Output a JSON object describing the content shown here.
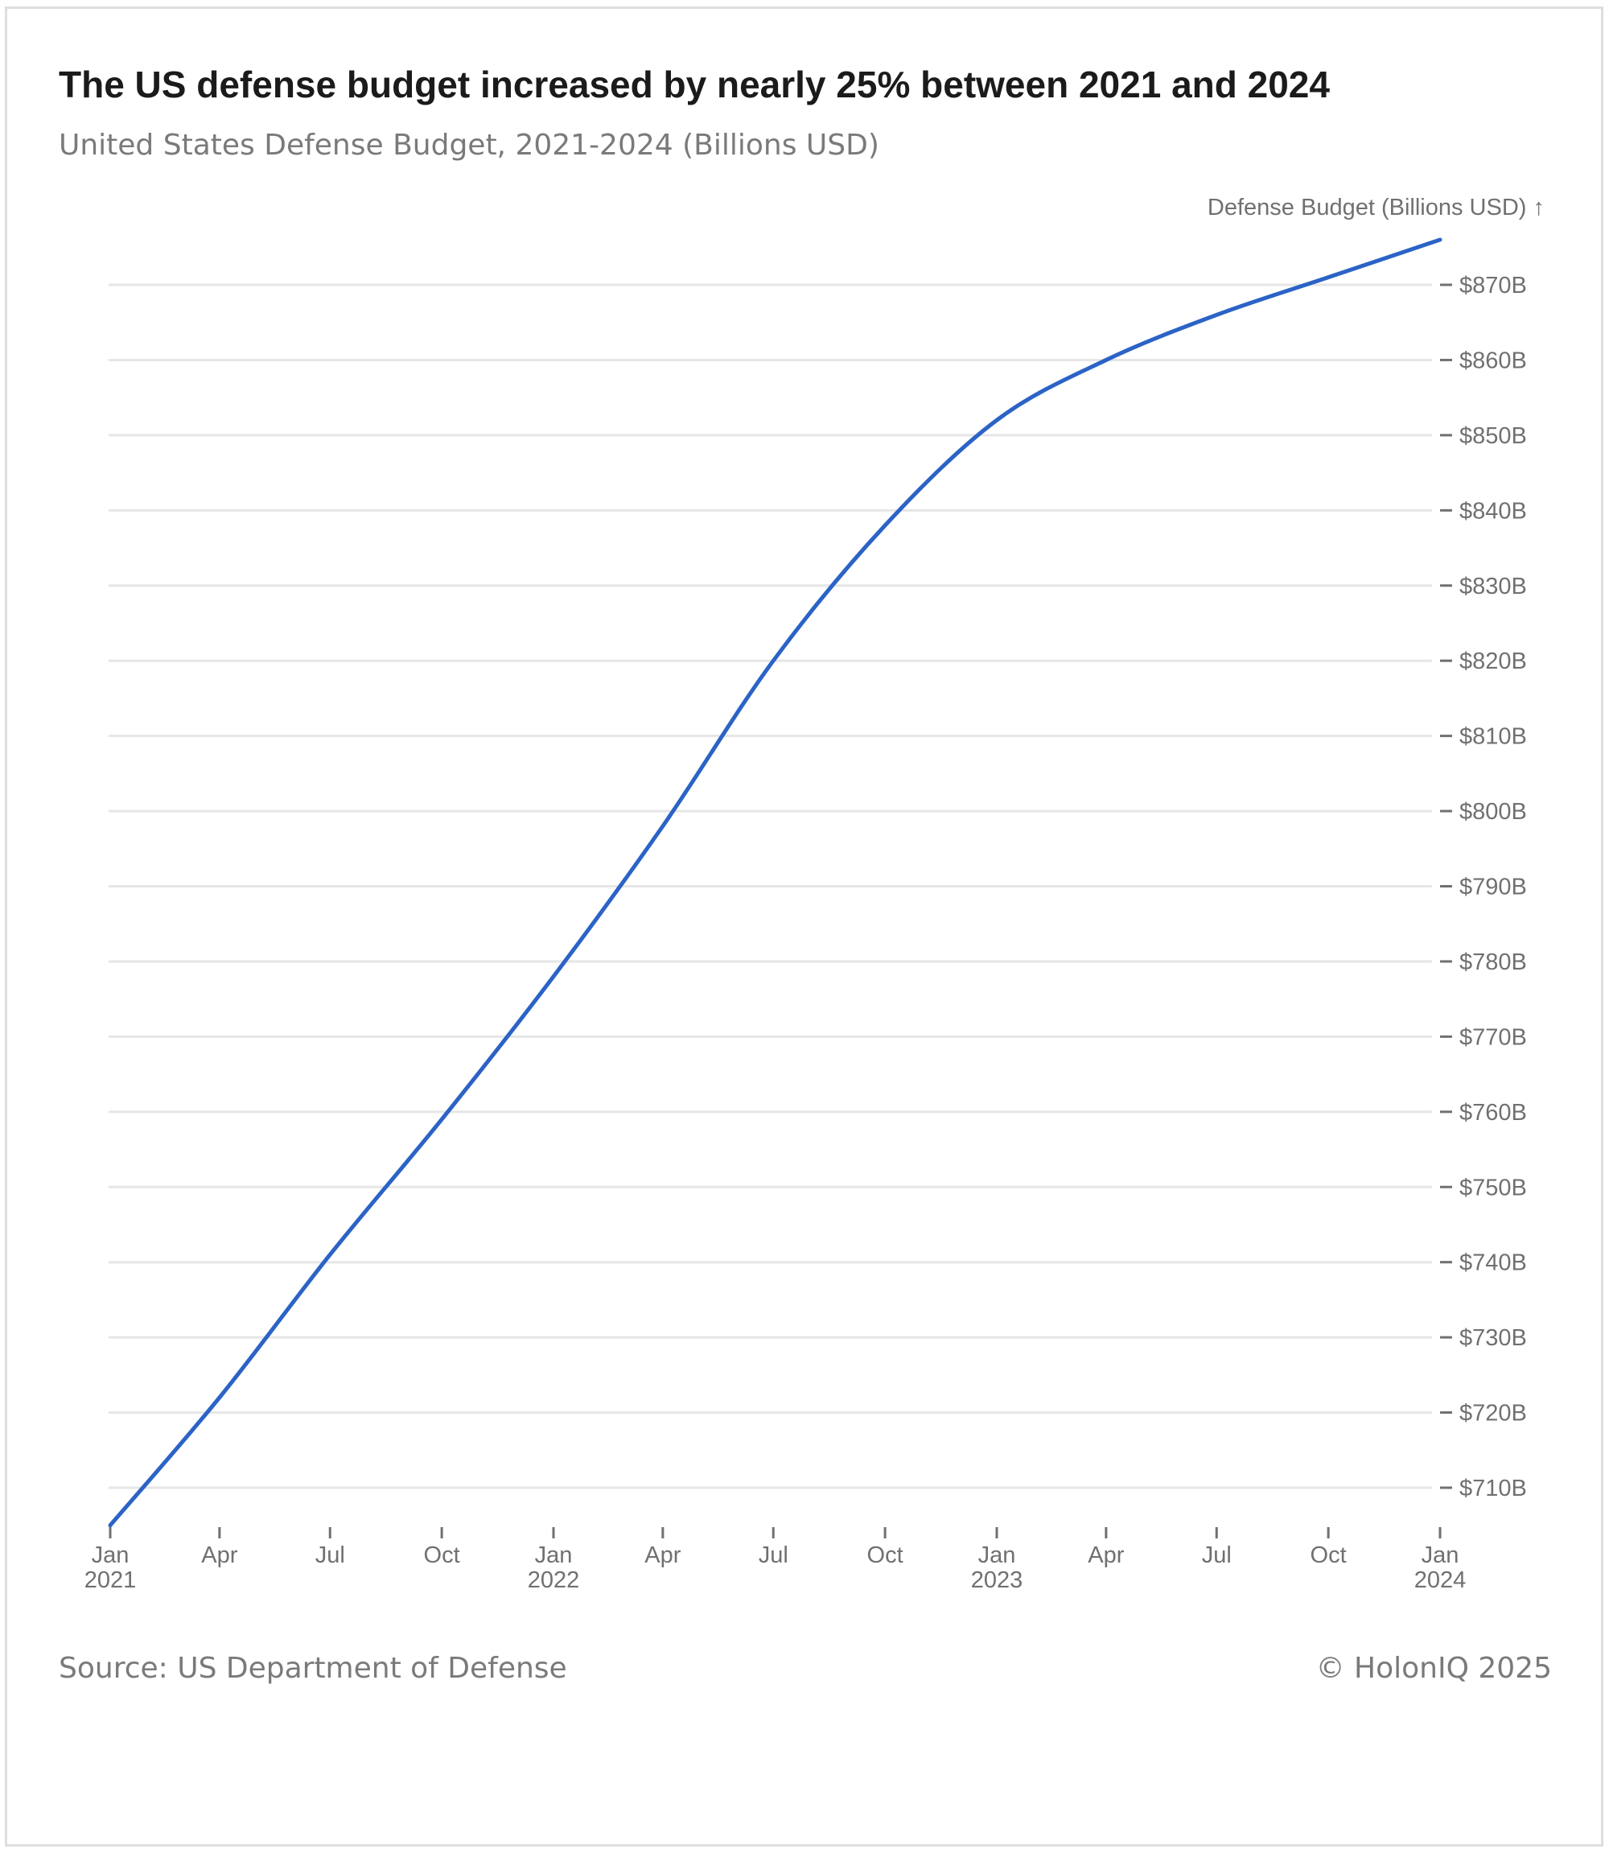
{
  "header": {
    "title": "The US defense budget increased by nearly 25% between 2021 and 2024",
    "subtitle": "United States Defense Budget, 2021-2024 (Billions USD)"
  },
  "footer": {
    "source": "Source: US Department of Defense",
    "copyright": "© HolonIQ 2025"
  },
  "colors": {
    "line": "#2b63c6",
    "grid": "#e6e6e6",
    "tick": "#707070"
  },
  "chart_data": {
    "type": "line",
    "ylabel": "Defense Budget (Billions USD) ↑",
    "xlabel": "",
    "x_range": [
      "2021-01-01",
      "2024-01-01"
    ],
    "ylim": [
      705,
      876
    ],
    "y_ticks": [
      {
        "value": 710,
        "label": "$710B"
      },
      {
        "value": 720,
        "label": "$720B"
      },
      {
        "value": 730,
        "label": "$730B"
      },
      {
        "value": 740,
        "label": "$740B"
      },
      {
        "value": 750,
        "label": "$750B"
      },
      {
        "value": 760,
        "label": "$760B"
      },
      {
        "value": 770,
        "label": "$770B"
      },
      {
        "value": 780,
        "label": "$780B"
      },
      {
        "value": 790,
        "label": "$790B"
      },
      {
        "value": 800,
        "label": "$800B"
      },
      {
        "value": 810,
        "label": "$810B"
      },
      {
        "value": 820,
        "label": "$820B"
      },
      {
        "value": 830,
        "label": "$830B"
      },
      {
        "value": 840,
        "label": "$840B"
      },
      {
        "value": 850,
        "label": "$850B"
      },
      {
        "value": 860,
        "label": "$860B"
      },
      {
        "value": 870,
        "label": "$870B"
      }
    ],
    "x_ticks": [
      {
        "date": "2021-01-01",
        "label": "Jan",
        "year": "2021"
      },
      {
        "date": "2021-04-01",
        "label": "Apr",
        "year": ""
      },
      {
        "date": "2021-07-01",
        "label": "Jul",
        "year": ""
      },
      {
        "date": "2021-10-01",
        "label": "Oct",
        "year": ""
      },
      {
        "date": "2022-01-01",
        "label": "Jan",
        "year": "2022"
      },
      {
        "date": "2022-04-01",
        "label": "Apr",
        "year": ""
      },
      {
        "date": "2022-07-01",
        "label": "Jul",
        "year": ""
      },
      {
        "date": "2022-10-01",
        "label": "Oct",
        "year": ""
      },
      {
        "date": "2023-01-01",
        "label": "Jan",
        "year": "2023"
      },
      {
        "date": "2023-04-01",
        "label": "Apr",
        "year": ""
      },
      {
        "date": "2023-07-01",
        "label": "Jul",
        "year": ""
      },
      {
        "date": "2023-10-01",
        "label": "Oct",
        "year": ""
      },
      {
        "date": "2024-01-01",
        "label": "Jan",
        "year": "2024"
      }
    ],
    "series": [
      {
        "points": [
          {
            "x": "2021-01-01",
            "y": 705
          },
          {
            "x": "2021-04-01",
            "y": 722
          },
          {
            "x": "2021-07-01",
            "y": 741
          },
          {
            "x": "2021-10-01",
            "y": 759
          },
          {
            "x": "2022-01-01",
            "y": 778
          },
          {
            "x": "2022-04-01",
            "y": 798
          },
          {
            "x": "2022-07-01",
            "y": 820
          },
          {
            "x": "2022-10-01",
            "y": 838
          },
          {
            "x": "2023-01-01",
            "y": 852
          },
          {
            "x": "2023-04-01",
            "y": 860
          },
          {
            "x": "2023-07-01",
            "y": 866
          },
          {
            "x": "2023-10-01",
            "y": 871
          },
          {
            "x": "2024-01-01",
            "y": 876
          }
        ]
      }
    ]
  }
}
